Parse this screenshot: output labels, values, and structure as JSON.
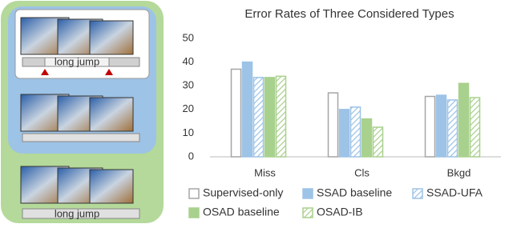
{
  "chart_data": {
    "type": "bar",
    "title": "Error Rates of Three Considered Types",
    "categories": [
      "Miss",
      "Cls",
      "Bkgd"
    ],
    "series": [
      {
        "name": "Supervised-only",
        "color": "#ffffff",
        "edgecolor": "#a6a6a6",
        "hatch": false,
        "values": [
          37,
          27,
          25.5
        ]
      },
      {
        "name": "SSAD baseline",
        "color": "#9dc3e6",
        "hatch": false,
        "values": [
          40,
          20,
          26
        ]
      },
      {
        "name": "SSAD-UFA",
        "color": "#9dc3e6",
        "hatch": true,
        "values": [
          33.5,
          21,
          24
        ]
      },
      {
        "name": "OSAD baseline",
        "color": "#a9d18e",
        "hatch": false,
        "values": [
          33.5,
          16,
          31
        ]
      },
      {
        "name": "OSAD-IB",
        "color": "#a9d18e",
        "hatch": true,
        "values": [
          34,
          12.5,
          25
        ]
      }
    ],
    "ylim": [
      0,
      50
    ],
    "yticks": [
      0,
      10,
      20,
      30,
      40,
      50
    ],
    "grid": false,
    "legend": "bottom"
  },
  "diagram": {
    "labels": [
      "long jump",
      "long jump"
    ]
  }
}
